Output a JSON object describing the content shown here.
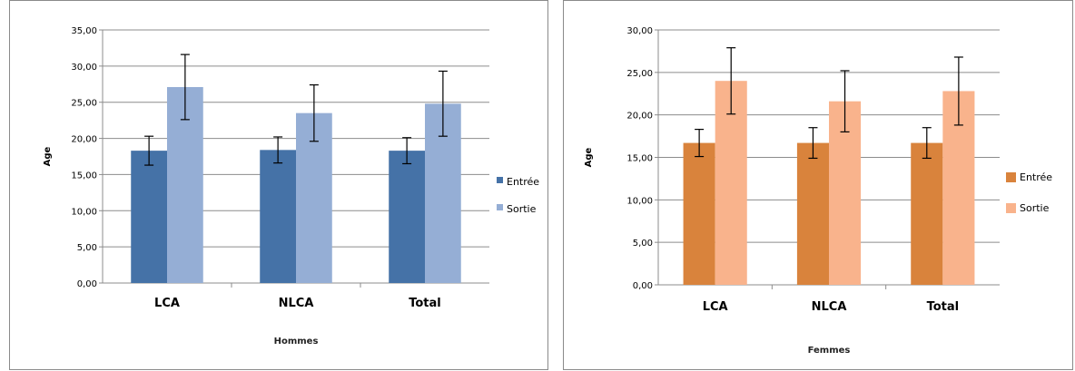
{
  "chart_data": [
    {
      "type": "bar",
      "title": "",
      "xlabel": "Hommes",
      "ylabel": "Age",
      "ylim": [
        0,
        35
      ],
      "ytick_step": 5,
      "yticks": [
        "0,00",
        "5,00",
        "10,00",
        "15,00",
        "20,00",
        "25,00",
        "30,00",
        "35,00"
      ],
      "categories": [
        "LCA",
        "NLCA",
        "Total"
      ],
      "grid": true,
      "legend": "right",
      "series": [
        {
          "name": "Entrée",
          "color": "#4572a7",
          "values": [
            18.3,
            18.4,
            18.3
          ],
          "errors": [
            2.0,
            1.8,
            1.8
          ]
        },
        {
          "name": "Sortie",
          "color": "#95aed5",
          "values": [
            27.1,
            23.5,
            24.8
          ],
          "errors": [
            4.5,
            3.9,
            4.5
          ]
        }
      ]
    },
    {
      "type": "bar",
      "title": "",
      "xlabel": "Femmes",
      "ylabel": "Age",
      "ylim": [
        0,
        30
      ],
      "ytick_step": 5,
      "yticks": [
        "0,00",
        "5,00",
        "10,00",
        "15,00",
        "20,00",
        "25,00",
        "30,00"
      ],
      "categories": [
        "LCA",
        "NLCA",
        "Total"
      ],
      "grid": true,
      "legend": "right",
      "series": [
        {
          "name": "Entrée",
          "color": "#d9833c",
          "values": [
            16.7,
            16.7,
            16.7
          ],
          "errors": [
            1.6,
            1.8,
            1.8
          ]
        },
        {
          "name": "Sortie",
          "color": "#f9b38c",
          "values": [
            24.0,
            21.6,
            22.8
          ],
          "errors": [
            3.9,
            3.6,
            4.0
          ]
        }
      ]
    }
  ]
}
